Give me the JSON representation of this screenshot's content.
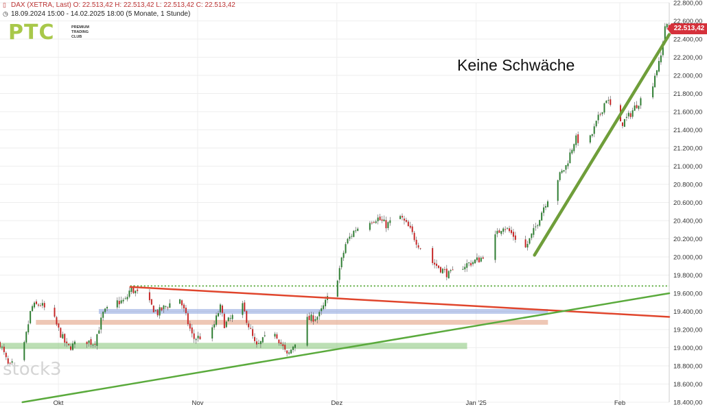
{
  "header": {
    "line1": "DAX (XETRA, Last)  O: 22.513,42  H: 22.513,42  L: 22.513,42  C: 22.513,42",
    "line2": "18.09.2024 15:00 - 14.02.2025 18:00  (5 Monate, 1 Stunde)",
    "line1_icon": "candles-icon",
    "line2_icon": "clock-icon"
  },
  "logo": {
    "mark": "PTC",
    "line1": "PREMIUM",
    "line2": "TRADING",
    "line3": "CLUB"
  },
  "watermark": "stock3",
  "annotation": "Keine Schwäche",
  "last_price_label": "22.513,42",
  "colors": {
    "up": "#2e7d32",
    "down": "#c62828",
    "trend_green": "#5aaa3c",
    "trend_red": "#e0452c",
    "support_green": "#8fca82",
    "zone_blue": "#93a8df",
    "zone_salmon": "#e2a184",
    "price_tag": "#d5313b"
  },
  "chart_data": {
    "type": "candlestick",
    "title": "",
    "xlabel": "",
    "ylabel": "",
    "ylim": [
      18400,
      22800
    ],
    "y_ticks": [
      18400,
      18600,
      18800,
      19000,
      19200,
      19400,
      19600,
      19800,
      20000,
      20200,
      20400,
      20600,
      20800,
      21000,
      21200,
      21400,
      21600,
      21800,
      22000,
      22200,
      22400,
      22600,
      22800
    ],
    "y_tick_labels": [
      "18.400,00",
      "18.600,00",
      "18.800,00",
      "19.000,00",
      "19.200,00",
      "19.400,00",
      "19.600,00",
      "19.800,00",
      "20.000,00",
      "20.200,00",
      "20.400,00",
      "20.600,00",
      "20.800,00",
      "21.000,00",
      "21.200,00",
      "21.400,00",
      "21.600,00",
      "21.800,00",
      "22.000,00",
      "22.200,00",
      "22.400,00",
      "22.600,00",
      "22.800,00"
    ],
    "x_range": [
      "2024-09-18",
      "2025-02-14"
    ],
    "x_ticks": [
      {
        "date": "2024-10-01",
        "label": "Okt"
      },
      {
        "date": "2024-11-01",
        "label": "Nov"
      },
      {
        "date": "2024-12-02",
        "label": "Dez"
      },
      {
        "date": "2025-01-02",
        "label": "Jan '25"
      },
      {
        "date": "2025-02-03",
        "label": "Feb"
      }
    ],
    "price_path": [
      [
        "2024-09-18",
        19050
      ],
      [
        "2024-09-20",
        18780
      ],
      [
        "2024-09-23",
        18920
      ],
      [
        "2024-09-25",
        19450
      ],
      [
        "2024-09-27",
        19480
      ],
      [
        "2024-09-30",
        19320
      ],
      [
        "2024-10-01",
        19200
      ],
      [
        "2024-10-03",
        19000
      ],
      [
        "2024-10-07",
        19080
      ],
      [
        "2024-10-09",
        19050
      ],
      [
        "2024-10-11",
        19380
      ],
      [
        "2024-10-14",
        19500
      ],
      [
        "2024-10-16",
        19520
      ],
      [
        "2024-10-17",
        19650
      ],
      [
        "2024-10-18",
        19620
      ],
      [
        "2024-10-21",
        19500
      ],
      [
        "2024-10-23",
        19380
      ],
      [
        "2024-10-25",
        19460
      ],
      [
        "2024-10-28",
        19550
      ],
      [
        "2024-10-31",
        19100
      ],
      [
        "2024-11-04",
        19150
      ],
      [
        "2024-11-06",
        19450
      ],
      [
        "2024-11-07",
        19250
      ],
      [
        "2024-11-11",
        19450
      ],
      [
        "2024-11-14",
        19000
      ],
      [
        "2024-11-18",
        19200
      ],
      [
        "2024-11-21",
        18900
      ],
      [
        "2024-11-25",
        19300
      ],
      [
        "2024-11-28",
        19350
      ],
      [
        "2024-11-29",
        19450
      ],
      [
        "2024-12-02",
        19750
      ],
      [
        "2024-12-04",
        20150
      ],
      [
        "2024-12-06",
        20300
      ],
      [
        "2024-12-09",
        20400
      ],
      [
        "2024-12-11",
        20430
      ],
      [
        "2024-12-13",
        20350
      ],
      [
        "2024-12-16",
        20450
      ],
      [
        "2024-12-18",
        20320
      ],
      [
        "2024-12-20",
        20150
      ],
      [
        "2024-12-23",
        19950
      ],
      [
        "2024-12-27",
        19800
      ],
      [
        "2024-12-30",
        19900
      ],
      [
        "2025-01-03",
        19980
      ],
      [
        "2025-01-06",
        20200
      ],
      [
        "2025-01-08",
        20350
      ],
      [
        "2025-01-10",
        20250
      ],
      [
        "2025-01-13",
        20100
      ],
      [
        "2025-01-15",
        20300
      ],
      [
        "2025-01-17",
        20550
      ],
      [
        "2025-01-20",
        20850
      ],
      [
        "2025-01-22",
        21000
      ],
      [
        "2025-01-24",
        21300
      ],
      [
        "2025-01-27",
        21250
      ],
      [
        "2025-01-29",
        21500
      ],
      [
        "2025-01-31",
        21750
      ],
      [
        "2025-02-03",
        21450
      ],
      [
        "2025-02-05",
        21550
      ],
      [
        "2025-02-07",
        21700
      ],
      [
        "2025-02-10",
        21850
      ],
      [
        "2025-02-11",
        22050
      ],
      [
        "2025-02-12",
        22150
      ],
      [
        "2025-02-13",
        22550
      ],
      [
        "2025-02-14",
        22513
      ]
    ],
    "last_value": 22513.42,
    "annotations": {
      "red_downtrend": [
        [
          "2024-10-17",
          19670
        ],
        [
          "2025-02-14",
          19340
        ]
      ],
      "green_uptrend": [
        [
          "2024-09-23",
          18400
        ],
        [
          "2025-02-14",
          19600
        ]
      ],
      "bold_green_trend": [
        [
          "2025-01-15",
          20020
        ],
        [
          "2025-02-14",
          22450
        ]
      ],
      "dotted_level": {
        "value": 19680,
        "from": "2024-10-17",
        "to": "2025-02-14"
      },
      "zone_blue": {
        "value": 19400,
        "from": "2024-10-10",
        "to": "2025-01-18"
      },
      "zone_salmon": {
        "value": 19280,
        "from": "2024-09-26",
        "to": "2025-01-18"
      },
      "zone_green": {
        "value": 19020,
        "from": "2024-09-18",
        "to": "2024-12-31"
      }
    }
  }
}
